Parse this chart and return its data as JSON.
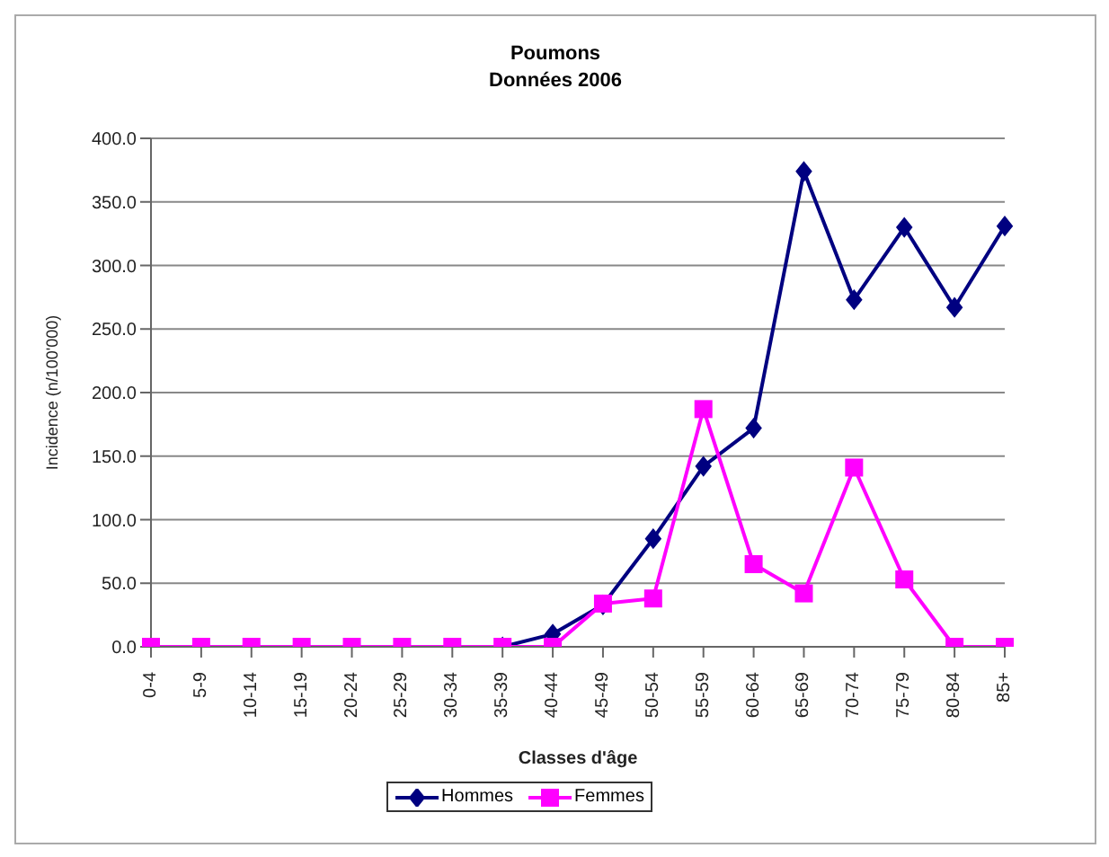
{
  "chart_data": {
    "type": "line",
    "title": "Poumons\nDonnées 2006",
    "xlabel": "Classes d'âge",
    "ylabel": "Incidence (n/100'000)",
    "categories": [
      "0-4",
      "5-9",
      "10-14",
      "15-19",
      "20-24",
      "25-29",
      "30-34",
      "35-39",
      "40-44",
      "45-49",
      "50-54",
      "55-59",
      "60-64",
      "65-69",
      "70-74",
      "75-79",
      "80-84",
      "85+"
    ],
    "series": [
      {
        "name": "Hommes",
        "color": "#000080",
        "marker": "diamond",
        "values": [
          null,
          null,
          null,
          null,
          null,
          null,
          null,
          0,
          10,
          33,
          85,
          142,
          172,
          374,
          273,
          330,
          267,
          331
        ]
      },
      {
        "name": "Femmes",
        "color": "#ff00ff",
        "marker": "square",
        "values": [
          0,
          0,
          0,
          0,
          0,
          0,
          0,
          0,
          0,
          34,
          38,
          187,
          65,
          42,
          141,
          53,
          0,
          0
        ]
      }
    ],
    "ylim": [
      0,
      400
    ],
    "yticks": [
      {
        "value": 0,
        "label": "0.0"
      },
      {
        "value": 50,
        "label": "50.0"
      },
      {
        "value": 100,
        "label": "100.0"
      },
      {
        "value": 150,
        "label": "150.0"
      },
      {
        "value": 200,
        "label": "200.0"
      },
      {
        "value": 250,
        "label": "250.0"
      },
      {
        "value": 300,
        "label": "300.0"
      },
      {
        "value": 350,
        "label": "350.0"
      },
      {
        "value": 400,
        "label": "400.0"
      }
    ],
    "grid": "y",
    "legend": "bottom"
  }
}
